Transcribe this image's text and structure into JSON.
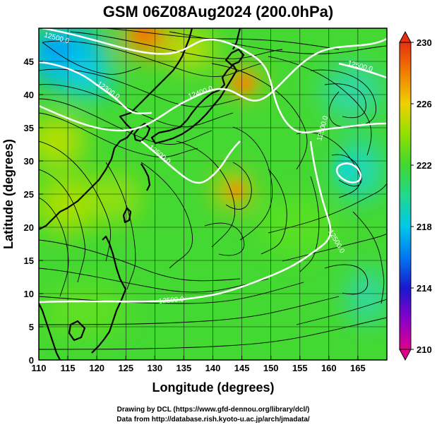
{
  "title": "GSM 06Z08Aug2024 (200.0hPa)",
  "xlabel": "Longitude (degrees)",
  "ylabel": "Latitude  (degrees)",
  "credits": [
    "Drawing by DCL (https://www.gfd-dennou.org/library/dcl/)",
    "Data from http://database.rish.kyoto-u.ac.jp/arch/jmadata/"
  ],
  "map": {
    "lon_range": [
      110,
      170
    ],
    "lat_range": [
      0,
      50
    ],
    "lon_ticks": [
      "110",
      "115",
      "120",
      "125",
      "130",
      "135",
      "140",
      "145",
      "150",
      "155",
      "160",
      "165"
    ],
    "lat_ticks": [
      "0",
      "5",
      "10",
      "15",
      "20",
      "25",
      "30",
      "35",
      "40",
      "45"
    ],
    "contour_labels": [
      "12300.0",
      "12400.0",
      "12500.0",
      "12500.0",
      "12500.0",
      "12500.0",
      "12500.0",
      "12500.0"
    ]
  },
  "colorbar": {
    "ticks": [
      "230",
      "226",
      "222",
      "218",
      "214",
      "210"
    ],
    "range": [
      210,
      230
    ],
    "colors": [
      "#e0008c",
      "#8800c8",
      "#1818d0",
      "#0090f0",
      "#00d8c8",
      "#20d850",
      "#50e020",
      "#a0e000",
      "#f0d000",
      "#f08000",
      "#e83010"
    ]
  },
  "colors": {
    "field_base": "#40d830",
    "contour": "#ffffff",
    "streamline": "#000000"
  }
}
